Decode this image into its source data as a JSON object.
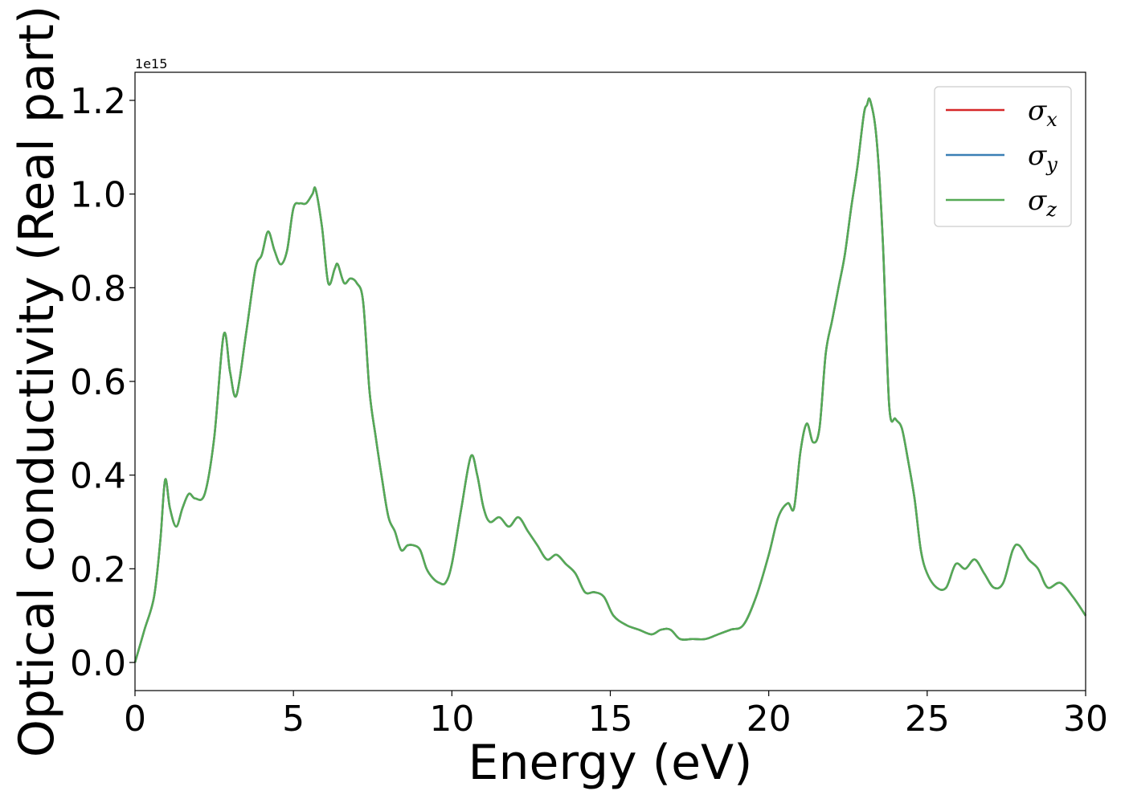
{
  "chart_data": {
    "type": "line",
    "xlabel": "Energy (eV)",
    "ylabel": "Optical conductivity (Real part)",
    "y_offset_label": "1e15",
    "xlim": [
      0,
      30
    ],
    "ylim": [
      -0.06,
      1.26
    ],
    "x_ticks": [
      0,
      5,
      10,
      15,
      20,
      25,
      30
    ],
    "x_tick_labels": [
      "0",
      "5",
      "10",
      "15",
      "20",
      "25",
      "30"
    ],
    "y_ticks": [
      0.0,
      0.2,
      0.4,
      0.6,
      0.8,
      1.0,
      1.2
    ],
    "y_tick_labels": [
      "0.0",
      "0.2",
      "0.4",
      "0.6",
      "0.8",
      "1.0",
      "1.2"
    ],
    "grid": false,
    "legend_position": "top-right",
    "series_colors": [
      "#d62728",
      "#3a7fb5",
      "#55aa55"
    ],
    "legend": [
      {
        "symbol": "σ",
        "sub": "x",
        "color": "#d62728"
      },
      {
        "symbol": "σ",
        "sub": "y",
        "color": "#3a7fb5"
      },
      {
        "symbol": "σ",
        "sub": "z",
        "color": "#55aa55"
      }
    ],
    "x": [
      0,
      0.3,
      0.6,
      0.8,
      0.95,
      1.1,
      1.3,
      1.5,
      1.7,
      1.9,
      2.2,
      2.5,
      2.8,
      3.0,
      3.2,
      3.5,
      3.8,
      4.0,
      4.2,
      4.4,
      4.6,
      4.8,
      5.0,
      5.2,
      5.4,
      5.6,
      5.7,
      5.9,
      6.1,
      6.3,
      6.4,
      6.6,
      6.8,
      7.0,
      7.2,
      7.4,
      7.6,
      7.8,
      8.0,
      8.2,
      8.4,
      8.6,
      8.8,
      9.0,
      9.2,
      9.4,
      9.6,
      9.8,
      10.0,
      10.3,
      10.6,
      10.8,
      11.0,
      11.2,
      11.5,
      11.8,
      12.1,
      12.4,
      12.7,
      13.0,
      13.3,
      13.6,
      13.9,
      14.2,
      14.5,
      14.8,
      15.1,
      15.5,
      15.9,
      16.3,
      16.6,
      16.9,
      17.2,
      17.6,
      18.0,
      18.4,
      18.8,
      19.2,
      19.6,
      20.0,
      20.3,
      20.6,
      20.8,
      21.0,
      21.2,
      21.4,
      21.6,
      21.8,
      22.0,
      22.2,
      22.4,
      22.6,
      22.8,
      23.0,
      23.1,
      23.2,
      23.4,
      23.6,
      23.8,
      24.0,
      24.2,
      24.4,
      24.6,
      24.8,
      25.0,
      25.3,
      25.6,
      25.9,
      26.2,
      26.5,
      26.8,
      27.1,
      27.4,
      27.7,
      27.9,
      28.2,
      28.5,
      28.8,
      29.2,
      29.6,
      30.0
    ],
    "series": [
      {
        "values": [
          0.0,
          0.07,
          0.14,
          0.26,
          0.39,
          0.33,
          0.29,
          0.33,
          0.36,
          0.35,
          0.36,
          0.48,
          0.7,
          0.62,
          0.57,
          0.7,
          0.84,
          0.87,
          0.92,
          0.88,
          0.85,
          0.88,
          0.97,
          0.98,
          0.98,
          1.0,
          1.01,
          0.93,
          0.81,
          0.84,
          0.85,
          0.81,
          0.82,
          0.81,
          0.77,
          0.58,
          0.48,
          0.39,
          0.31,
          0.28,
          0.24,
          0.25,
          0.25,
          0.24,
          0.2,
          0.18,
          0.17,
          0.17,
          0.21,
          0.33,
          0.44,
          0.4,
          0.33,
          0.3,
          0.31,
          0.29,
          0.31,
          0.28,
          0.25,
          0.22,
          0.23,
          0.21,
          0.19,
          0.15,
          0.15,
          0.14,
          0.1,
          0.08,
          0.07,
          0.06,
          0.07,
          0.07,
          0.05,
          0.05,
          0.05,
          0.06,
          0.07,
          0.08,
          0.14,
          0.23,
          0.31,
          0.34,
          0.33,
          0.45,
          0.51,
          0.47,
          0.5,
          0.66,
          0.73,
          0.8,
          0.87,
          0.97,
          1.06,
          1.17,
          1.19,
          1.2,
          1.12,
          0.9,
          0.55,
          0.52,
          0.5,
          0.43,
          0.35,
          0.24,
          0.19,
          0.16,
          0.16,
          0.21,
          0.2,
          0.22,
          0.19,
          0.16,
          0.17,
          0.24,
          0.25,
          0.22,
          0.2,
          0.16,
          0.17,
          0.14,
          0.1
        ]
      },
      {
        "values": [
          0.0,
          0.07,
          0.14,
          0.26,
          0.39,
          0.33,
          0.29,
          0.33,
          0.36,
          0.35,
          0.36,
          0.48,
          0.7,
          0.62,
          0.57,
          0.7,
          0.84,
          0.87,
          0.92,
          0.88,
          0.85,
          0.88,
          0.97,
          0.98,
          0.98,
          1.0,
          1.01,
          0.93,
          0.81,
          0.84,
          0.85,
          0.81,
          0.82,
          0.81,
          0.77,
          0.58,
          0.48,
          0.39,
          0.31,
          0.28,
          0.24,
          0.25,
          0.25,
          0.24,
          0.2,
          0.18,
          0.17,
          0.17,
          0.21,
          0.33,
          0.44,
          0.4,
          0.33,
          0.3,
          0.31,
          0.29,
          0.31,
          0.28,
          0.25,
          0.22,
          0.23,
          0.21,
          0.19,
          0.15,
          0.15,
          0.14,
          0.1,
          0.08,
          0.07,
          0.06,
          0.07,
          0.07,
          0.05,
          0.05,
          0.05,
          0.06,
          0.07,
          0.08,
          0.14,
          0.23,
          0.31,
          0.34,
          0.33,
          0.45,
          0.51,
          0.47,
          0.5,
          0.66,
          0.73,
          0.8,
          0.87,
          0.97,
          1.06,
          1.17,
          1.19,
          1.2,
          1.12,
          0.9,
          0.55,
          0.52,
          0.5,
          0.43,
          0.35,
          0.24,
          0.19,
          0.16,
          0.16,
          0.21,
          0.2,
          0.22,
          0.19,
          0.16,
          0.17,
          0.24,
          0.25,
          0.22,
          0.2,
          0.16,
          0.17,
          0.14,
          0.1
        ]
      },
      {
        "values": [
          0.0,
          0.07,
          0.14,
          0.26,
          0.39,
          0.33,
          0.29,
          0.33,
          0.36,
          0.35,
          0.36,
          0.48,
          0.7,
          0.62,
          0.57,
          0.7,
          0.84,
          0.87,
          0.92,
          0.88,
          0.85,
          0.88,
          0.97,
          0.98,
          0.98,
          1.0,
          1.01,
          0.93,
          0.81,
          0.84,
          0.85,
          0.81,
          0.82,
          0.81,
          0.77,
          0.58,
          0.48,
          0.39,
          0.31,
          0.28,
          0.24,
          0.25,
          0.25,
          0.24,
          0.2,
          0.18,
          0.17,
          0.17,
          0.21,
          0.33,
          0.44,
          0.4,
          0.33,
          0.3,
          0.31,
          0.29,
          0.31,
          0.28,
          0.25,
          0.22,
          0.23,
          0.21,
          0.19,
          0.15,
          0.15,
          0.14,
          0.1,
          0.08,
          0.07,
          0.06,
          0.07,
          0.07,
          0.05,
          0.05,
          0.05,
          0.06,
          0.07,
          0.08,
          0.14,
          0.23,
          0.31,
          0.34,
          0.33,
          0.45,
          0.51,
          0.47,
          0.5,
          0.66,
          0.73,
          0.8,
          0.87,
          0.97,
          1.06,
          1.17,
          1.19,
          1.2,
          1.12,
          0.9,
          0.55,
          0.52,
          0.5,
          0.43,
          0.35,
          0.24,
          0.19,
          0.16,
          0.16,
          0.21,
          0.2,
          0.22,
          0.19,
          0.16,
          0.17,
          0.24,
          0.25,
          0.22,
          0.2,
          0.16,
          0.17,
          0.14,
          0.1
        ]
      }
    ]
  }
}
